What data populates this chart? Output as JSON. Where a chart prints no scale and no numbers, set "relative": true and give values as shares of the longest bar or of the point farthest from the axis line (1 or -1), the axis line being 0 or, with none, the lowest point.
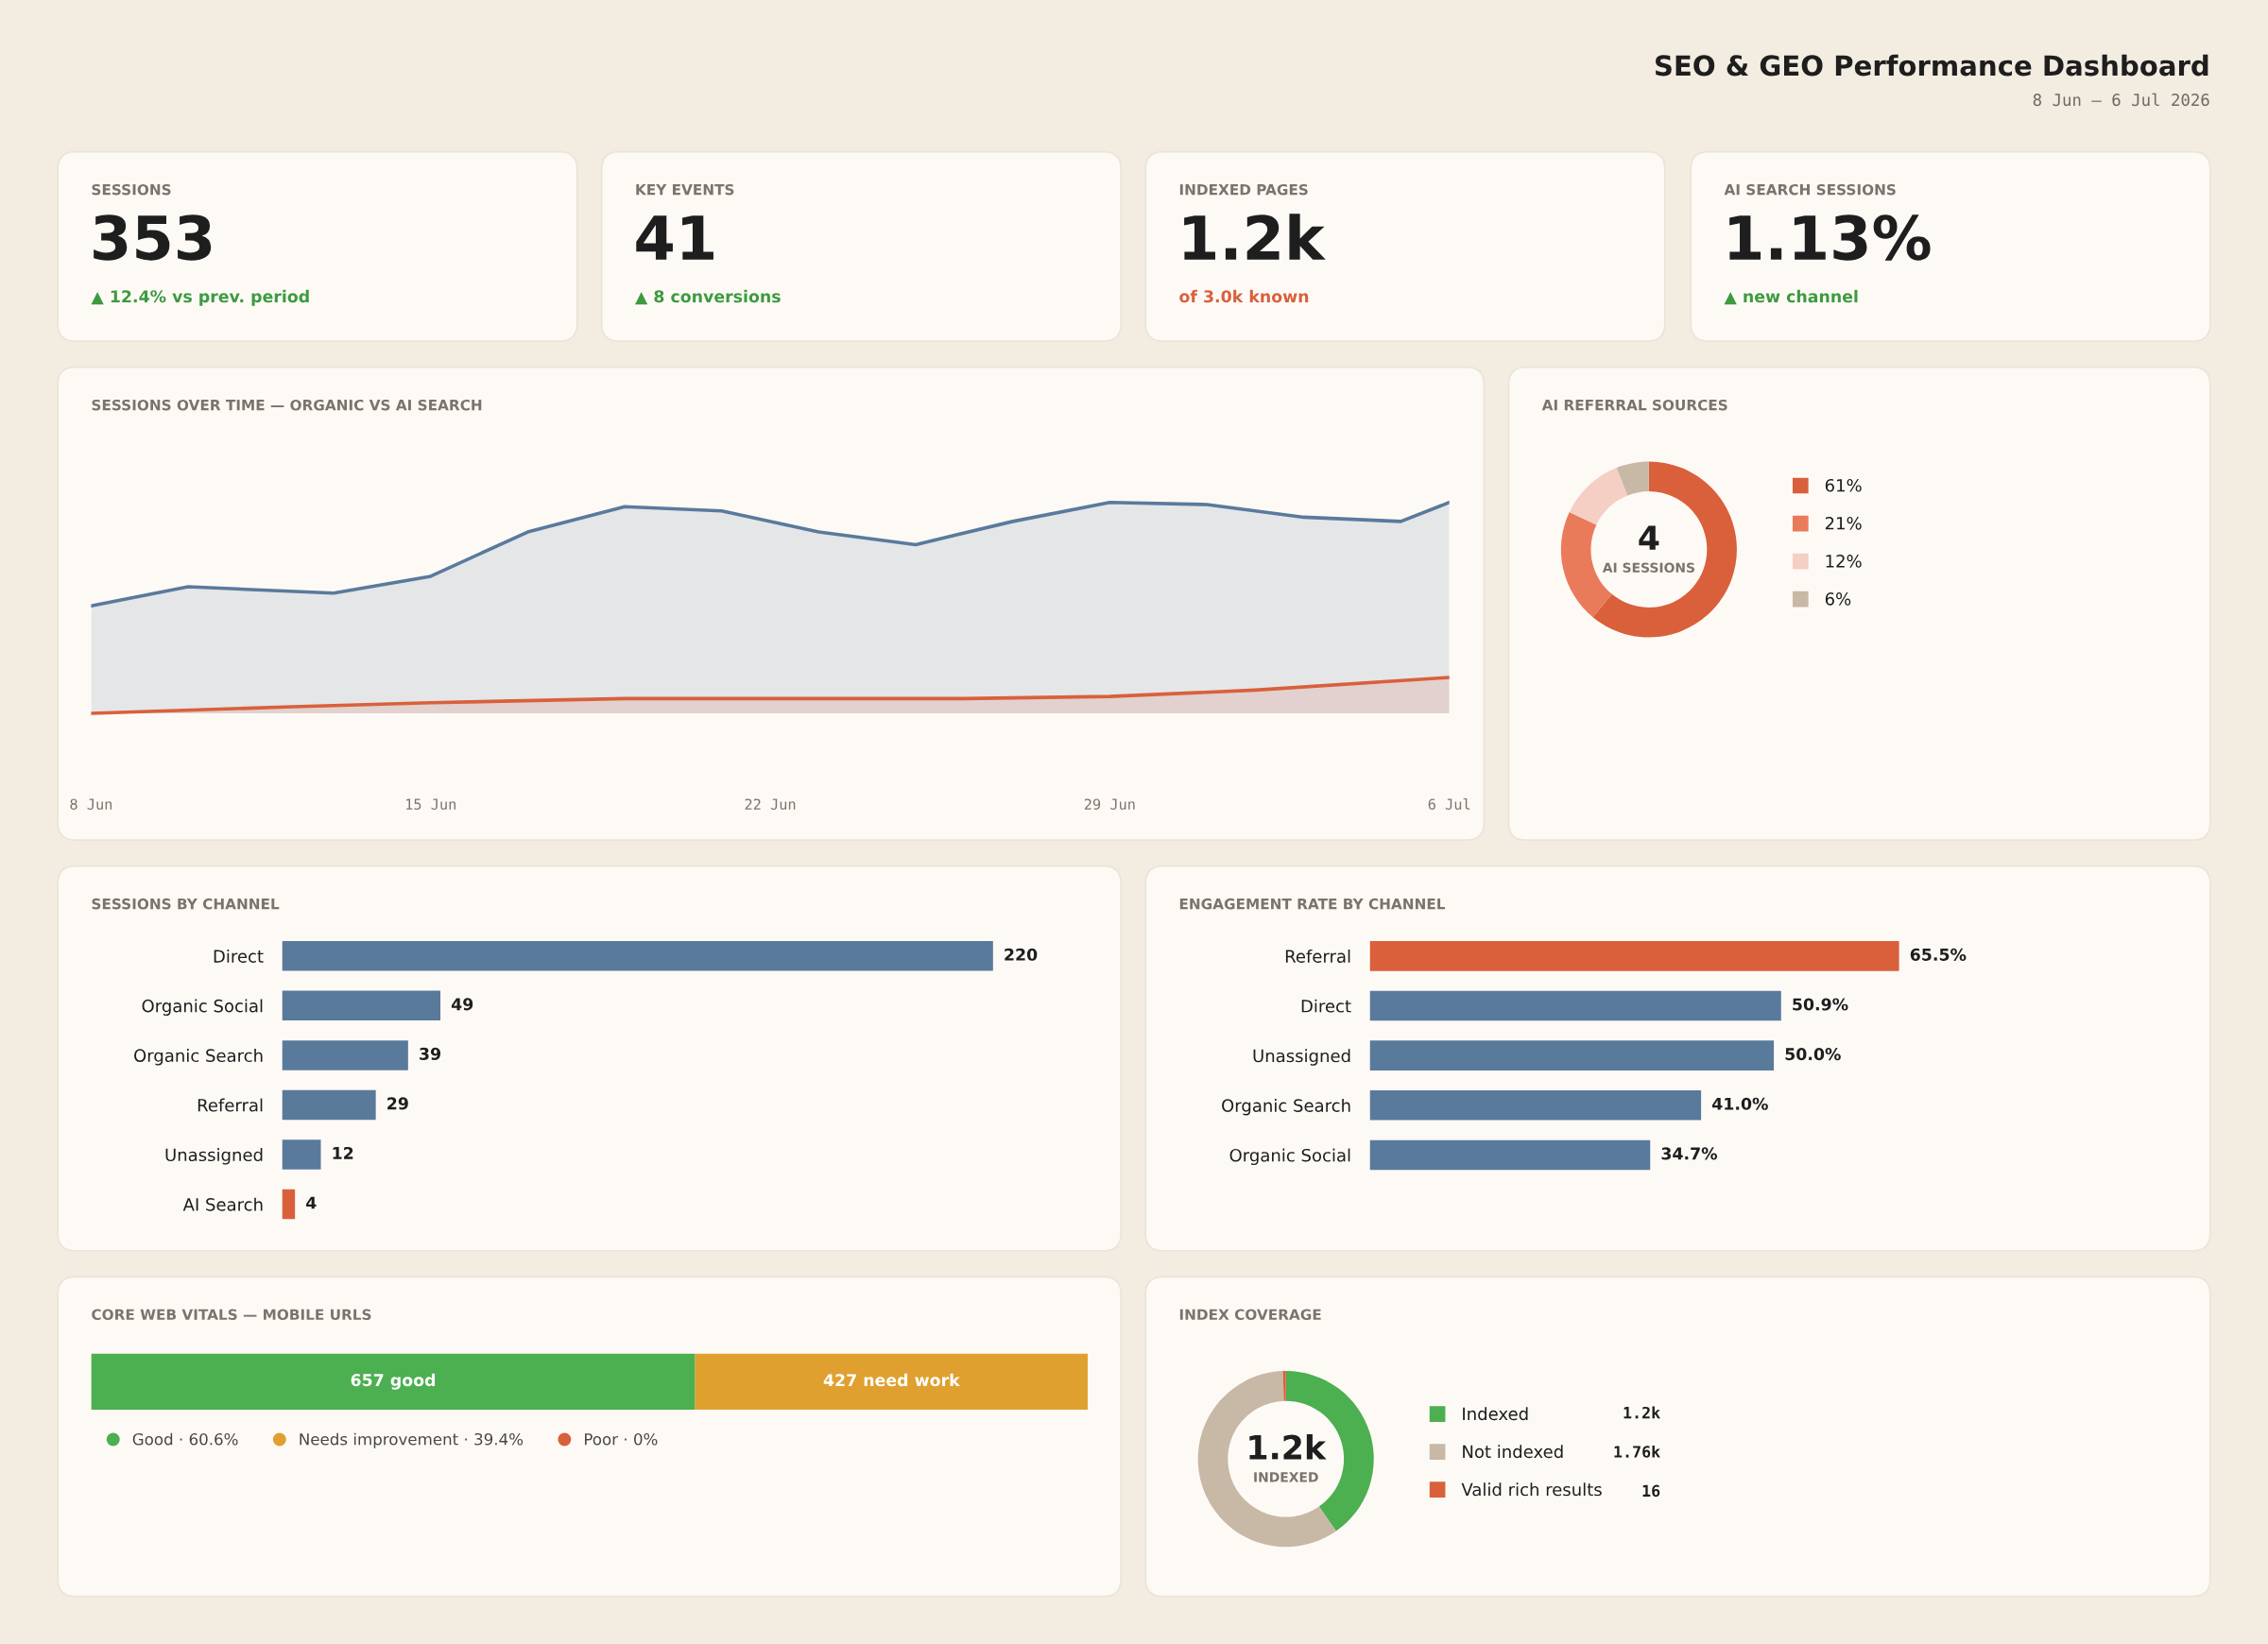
{
  "chart_data": [
    {
      "type": "other",
      "title": "SEO & GEO Performance Dashboard",
      "subtitle": "8 Jun – 6 Jul 2026"
    },
    {
      "type": "other",
      "title": "SESSIONS",
      "annotations": [
        "353",
        "▲ 12.4% vs prev. period"
      ]
    },
    {
      "type": "other",
      "title": "KEY EVENTS",
      "annotations": [
        "41",
        "▲ 8 conversions"
      ]
    },
    {
      "type": "other",
      "title": "INDEXED PAGES",
      "annotations": [
        "1.2k",
        "of 3.0k known"
      ]
    },
    {
      "type": "other",
      "title": "AI SEARCH SESSIONS",
      "annotations": [
        "1.13%",
        "▲ new channel"
      ]
    },
    {
      "type": "area",
      "title": "SESSIONS OVER TIME — ORGANIC VS AI SEARCH",
      "relative": true,
      "xlim": [
        "2026-06-08",
        "2026-07-06"
      ],
      "xticks": [
        {
          "value": "2026-06-08",
          "label": "8 Jun"
        },
        {
          "value": "2026-06-15",
          "label": "15 Jun"
        },
        {
          "value": "2026-06-22",
          "label": "22 Jun"
        },
        {
          "value": "2026-06-29",
          "label": "29 Jun"
        },
        {
          "value": "2026-07-06",
          "label": "6 Jul"
        }
      ],
      "series": [
        {
          "color": "#5a7a9c",
          "x": [
            "2026-06-08",
            "2026-06-10",
            "2026-06-13",
            "2026-06-15",
            "2026-06-17",
            "2026-06-19",
            "2026-06-21",
            "2026-06-23",
            "2026-06-25",
            "2026-06-27",
            "2026-06-29",
            "2026-07-01",
            "2026-07-03",
            "2026-07-05",
            "2026-07-06"
          ],
          "values": [
            0.51,
            0.6,
            0.57,
            0.65,
            0.86,
            0.98,
            0.96,
            0.86,
            0.8,
            0.91,
            1.0,
            0.99,
            0.93,
            0.91,
            1.0
          ]
        },
        {
          "color": "#d9603b",
          "x": [
            "2026-06-08",
            "2026-06-12",
            "2026-06-15",
            "2026-06-19",
            "2026-06-22",
            "2026-06-26",
            "2026-06-29",
            "2026-07-02",
            "2026-07-06"
          ],
          "values": [
            0,
            0.03,
            0.05,
            0.07,
            0.07,
            0.07,
            0.08,
            0.11,
            0.17
          ]
        }
      ]
    },
    {
      "type": "donut",
      "title": "AI REFERRAL SOURCES",
      "categories": [
        "61%",
        "21%",
        "12%",
        "6%"
      ],
      "values": [
        61,
        21,
        12,
        6
      ],
      "colors": [
        "#d9603b",
        "#ea7b5a",
        "#f5cfc3",
        "#c8b8a6"
      ],
      "annotations": [
        "4",
        "AI SESSIONS"
      ],
      "legend": "right"
    },
    {
      "type": "bar",
      "title": "SESSIONS BY CHANNEL",
      "orientation": "horizontal",
      "categories": [
        "Direct",
        "Organic Social",
        "Organic Search",
        "Referral",
        "Unassigned",
        "AI Search"
      ],
      "values": [
        220,
        49,
        39,
        29,
        12,
        4
      ],
      "colors": [
        "#5a7a9c",
        "#5a7a9c",
        "#5a7a9c",
        "#5a7a9c",
        "#5a7a9c",
        "#d9603b"
      ],
      "data_labels": true
    },
    {
      "type": "bar",
      "title": "ENGAGEMENT RATE BY CHANNEL",
      "orientation": "horizontal",
      "categories": [
        "Referral",
        "Direct",
        "Unassigned",
        "Organic Search",
        "Organic Social"
      ],
      "values": [
        65.5,
        50.9,
        50.0,
        41.0,
        34.7
      ],
      "colors": [
        "#d9603b",
        "#5a7a9c",
        "#5a7a9c",
        "#5a7a9c",
        "#5a7a9c"
      ],
      "value_labels": [
        "65.5%",
        "50.9%",
        "50.0%",
        "41.0%",
        "34.7%"
      ]
    },
    {
      "type": "bar",
      "title": "CORE WEB VITALS — MOBILE URLS",
      "orientation": "horizontal",
      "stacked": true,
      "categories": [
        null
      ],
      "legend": "bottom left",
      "series": [
        {
          "name": "Good · 60.6%",
          "color": "#4caf50",
          "values": [
            657
          ],
          "value_labels": [
            "657 good"
          ]
        },
        {
          "name": "Needs improvement · 39.4%",
          "color": "#e0a030",
          "values": [
            427
          ],
          "value_labels": [
            "427 need work"
          ]
        },
        {
          "name": "Poor · 0%",
          "color": "#d9603b",
          "values": [
            0
          ],
          "value_labels": [
            null
          ]
        }
      ]
    },
    {
      "type": "donut",
      "title": "INDEX COVERAGE",
      "categories": [
        "Indexed",
        "Not indexed",
        "Valid rich results"
      ],
      "values": [
        1200,
        1760,
        16
      ],
      "colors": [
        "#4caf50",
        "#c8b8a6",
        "#d9603b"
      ],
      "value_labels": [
        "1.2k",
        "1.76k",
        "16"
      ],
      "annotations": [
        "1.2k",
        "INDEXED"
      ],
      "legend": "right"
    }
  ]
}
